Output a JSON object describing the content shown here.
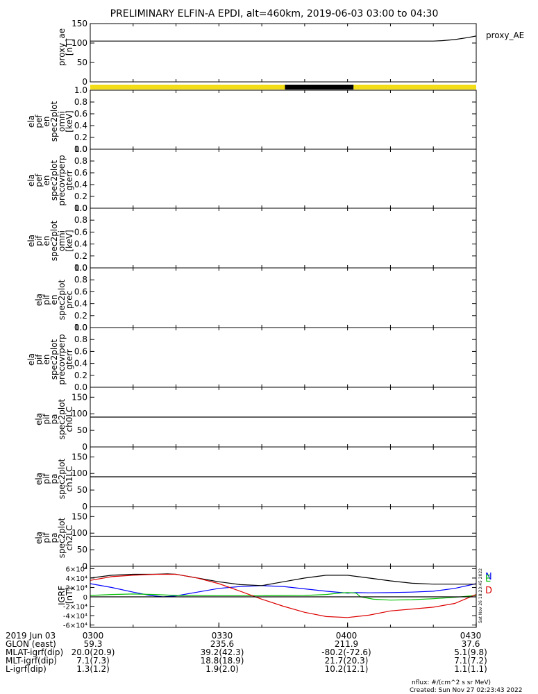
{
  "title": "PRELIMINARY ELFIN-A EPDI, alt=460km, 2019-06-03 03:00 to 04:30",
  "side_label": "proxy_AE",
  "stamp": "Sat Nov 26 18:23:45 2022",
  "footer": {
    "line1": "nflux: #/(cm^2 s sr MeV)",
    "line2": "Created: Sun Nov 27 02:23:43 2022"
  },
  "orbit_table": {
    "labels": [
      "2019 Jun 03",
      "GLON (east)",
      "MLAT-igrf(dip)",
      "MLT-igrf(dip)",
      "L-igrf(dip)"
    ],
    "columns": [
      {
        "time": "0300",
        "values": [
          "59.3",
          "20.0(20.9)",
          "7.1(7.3)",
          "1.3(1.2)"
        ]
      },
      {
        "time": "0330",
        "values": [
          "235.6",
          "39.2(42.3)",
          "18.8(18.9)",
          "1.9(2.0)"
        ]
      },
      {
        "time": "0400",
        "values": [
          "211.9",
          "-80.2(-72.6)",
          "21.7(20.3)",
          "10.2(12.1)"
        ]
      },
      {
        "time": "0430",
        "values": [
          "37.6",
          "5.1(9.8)",
          "7.1(7.2)",
          "1.1(1.1)"
        ]
      }
    ]
  },
  "chart_data": [
    {
      "type": "line",
      "id": "proxy_ae",
      "ylabel": [
        "proxy_ae",
        "[nT]"
      ],
      "ylim": [
        0,
        150
      ],
      "yticks": [
        "0",
        "50",
        "100",
        "150"
      ],
      "xlim": [
        0,
        90
      ],
      "series": [
        {
          "name": "proxy_AE",
          "color": "#000000",
          "x": [
            0,
            20,
            40,
            60,
            80,
            82,
            85,
            88,
            90
          ],
          "y": [
            105,
            105,
            105,
            105,
            105,
            106,
            109,
            114,
            118
          ]
        }
      ]
    },
    {
      "type": "bar",
      "id": "coverage_bar",
      "segments": [
        {
          "start": 0,
          "end": 45.4,
          "color": "#f2dd16"
        },
        {
          "start": 45.4,
          "end": 61.4,
          "color": "#000000"
        },
        {
          "start": 61.4,
          "end": 90,
          "color": "#f2dd16"
        }
      ]
    },
    {
      "type": "line",
      "id": "pef-omni",
      "ylabel": [
        "ela",
        "pef",
        "en",
        "spec2plot",
        "omni",
        "[keV]"
      ],
      "ylim": [
        0,
        1
      ],
      "yticks": [
        "0.0",
        "0.2",
        "0.4",
        "0.6",
        "0.8",
        "1.0"
      ],
      "series": []
    },
    {
      "type": "line",
      "id": "pef-precovrperp",
      "ylabel": [
        "ela",
        "pef",
        "en",
        "spec2plot",
        "precovrperp",
        "gterr"
      ],
      "ylim": [
        0,
        1
      ],
      "yticks": [
        "0.0",
        "0.2",
        "0.4",
        "0.6",
        "0.8",
        "1.0"
      ],
      "series": []
    },
    {
      "type": "line",
      "id": "pif-omni",
      "ylabel": [
        "ela",
        "pif",
        "en",
        "spec2plot",
        "omni",
        "[keV]"
      ],
      "ylim": [
        0,
        1
      ],
      "yticks": [
        "0.0",
        "0.2",
        "0.4",
        "0.6",
        "0.8",
        "1.0"
      ],
      "series": []
    },
    {
      "type": "line",
      "id": "pif-prec",
      "ylabel": [
        "ela",
        "pif",
        "en",
        "spec2plot",
        "prec"
      ],
      "ylim": [
        0,
        1
      ],
      "yticks": [
        "0.0",
        "0.2",
        "0.4",
        "0.6",
        "0.8",
        "1.0"
      ],
      "series": []
    },
    {
      "type": "line",
      "id": "pif-precovrperp",
      "ylabel": [
        "ela",
        "pif",
        "en",
        "spec2plot",
        "precovrperp",
        "gterr"
      ],
      "ylim": [
        0,
        1
      ],
      "yticks": [
        "0.0",
        "0.2",
        "0.4",
        "0.6",
        "0.8",
        "1.0"
      ],
      "series": []
    },
    {
      "type": "line",
      "id": "pif-pa-ch0lc",
      "ylabel": [
        "ela",
        "pif",
        "pa",
        "spec2plot",
        "ch0LC"
      ],
      "ylim": [
        0,
        180
      ],
      "yticks": [
        "0",
        "50",
        "100",
        "150"
      ],
      "series": [
        {
          "name": "",
          "color": "#000000",
          "x": [
            0,
            90
          ],
          "y": [
            90,
            90
          ]
        }
      ]
    },
    {
      "type": "line",
      "id": "pif-pa-ch1lc",
      "ylabel": [
        "ela",
        "pif",
        "pa",
        "spec2plot",
        "ch1LC"
      ],
      "ylim": [
        0,
        180
      ],
      "yticks": [
        "0",
        "50",
        "100",
        "150"
      ],
      "series": [
        {
          "name": "",
          "color": "#000000",
          "x": [
            0,
            90
          ],
          "y": [
            90,
            90
          ]
        }
      ]
    },
    {
      "type": "line",
      "id": "pif-pa-ch2lc",
      "ylabel": [
        "ela",
        "pif",
        "pa",
        "spec2plot",
        "ch2LC"
      ],
      "ylim": [
        0,
        180
      ],
      "yticks": [
        "0",
        "50",
        "100",
        "150"
      ],
      "series": [
        {
          "name": "",
          "color": "#000000",
          "x": [
            0,
            90
          ],
          "y": [
            90,
            90
          ]
        }
      ]
    },
    {
      "type": "line",
      "id": "igrf",
      "ylabel": [
        "IGRF",
        "[nT]"
      ],
      "ylim": [
        -65000,
        65000
      ],
      "yticks": [
        "-6×10⁴",
        "-4×10⁴",
        "-2×10⁴",
        "0",
        "2×10⁴",
        "4×10⁴",
        "6×10⁴"
      ],
      "legend": [
        "N",
        "E",
        "D"
      ],
      "series": [
        {
          "name": "N",
          "color": "#0000ff",
          "x": [
            0,
            5,
            10,
            14,
            17,
            20,
            25,
            30,
            35,
            40,
            45,
            50,
            55,
            60,
            62,
            65,
            70,
            75,
            80,
            85,
            90
          ],
          "y": [
            28000,
            20000,
            10000,
            3000,
            0,
            2000,
            10000,
            18000,
            22000,
            24000,
            22000,
            17000,
            12000,
            8000,
            9000,
            8500,
            9000,
            10000,
            12000,
            18000,
            28000
          ]
        },
        {
          "name": "E",
          "color": "#00c000",
          "x": [
            0,
            5,
            10,
            15,
            20,
            30,
            40,
            50,
            55,
            58,
            60,
            62,
            63,
            66,
            70,
            75,
            80,
            85,
            90
          ],
          "y": [
            3000,
            5000,
            6000,
            5000,
            3000,
            2500,
            2500,
            3000,
            5000,
            8000,
            9000,
            8000,
            0,
            -5000,
            -7000,
            -6000,
            -4000,
            -1000,
            3000
          ]
        },
        {
          "name": "",
          "color": "#000000",
          "x": [
            0,
            5,
            10,
            15,
            18,
            20,
            25,
            30,
            35,
            40,
            45,
            50,
            55,
            60,
            65,
            70,
            75,
            80,
            85,
            90
          ],
          "y": [
            40000,
            46000,
            48000,
            48000,
            49000,
            48000,
            40000,
            32000,
            26000,
            24000,
            32000,
            40000,
            46000,
            46000,
            40000,
            34000,
            29000,
            27000,
            27000,
            27000
          ]
        },
        {
          "name": "",
          "color": "#dd0000",
          "x": [
            0,
            5,
            10,
            15,
            20,
            25,
            30,
            35,
            40,
            45,
            50,
            55,
            60,
            65,
            70,
            75,
            80,
            85,
            90
          ],
          "y": [
            35000,
            43000,
            46000,
            48000,
            48000,
            40000,
            28000,
            12000,
            -5000,
            -20000,
            -33000,
            -42000,
            -44000,
            -39000,
            -30000,
            -26000,
            -22000,
            -14000,
            5000
          ]
        },
        {
          "name": "",
          "color": "#000000",
          "x": [
            0,
            90
          ],
          "y": [
            0,
            0
          ]
        }
      ]
    }
  ]
}
